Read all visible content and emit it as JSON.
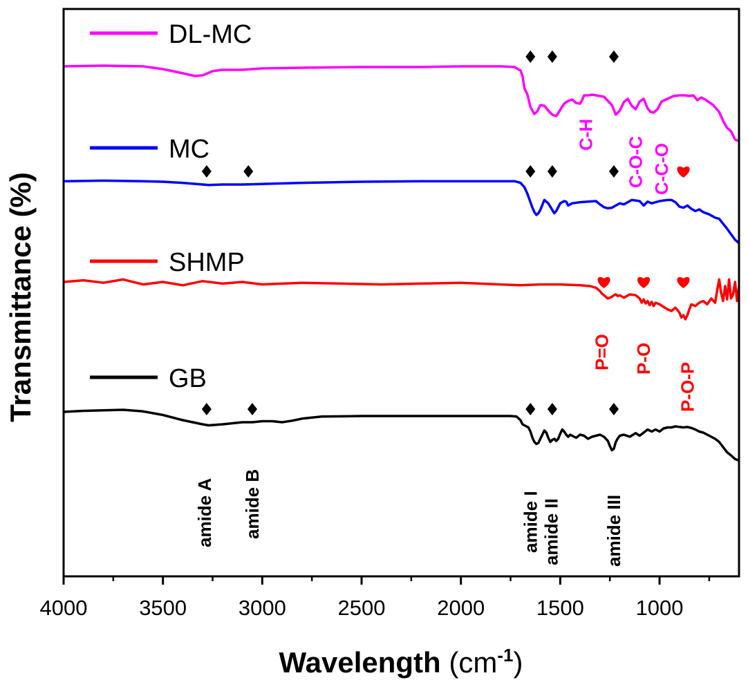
{
  "chart_data": {
    "type": "line",
    "title": "",
    "xlabel": "Wavelength",
    "xlabel_unit_base": "(cm",
    "xlabel_unit_sup": "-1",
    "xlabel_unit_close": ")",
    "ylabel": "Transmittance (%)",
    "xlim": [
      4000,
      600
    ],
    "x_reversed": true,
    "y_ticks_shown": false,
    "grid": false,
    "legend_placement": "left, beside each trace",
    "x_ticks": [
      4000,
      3500,
      3000,
      2500,
      2000,
      1500,
      1000
    ],
    "x_tick_labels": [
      "4000",
      "3500",
      "3000",
      "2500",
      "2000",
      "1500",
      "1000"
    ],
    "series": [
      {
        "name": "DL-MC",
        "color": "#ff00ff",
        "x": [
          4000,
          3800,
          3600,
          3500,
          3400,
          3340,
          3300,
          3250,
          3200,
          3100,
          3000,
          2800,
          2500,
          2200,
          2000,
          1800,
          1730,
          1700,
          1690,
          1680,
          1665,
          1650,
          1640,
          1630,
          1615,
          1600,
          1580,
          1560,
          1540,
          1520,
          1500,
          1480,
          1460,
          1440,
          1420,
          1400,
          1390,
          1380,
          1360,
          1340,
          1320,
          1300,
          1280,
          1260,
          1240,
          1220,
          1200,
          1180,
          1160,
          1140,
          1120,
          1100,
          1080,
          1060,
          1045,
          1030,
          1010,
          990,
          960,
          930,
          900,
          870,
          850,
          830,
          810,
          790,
          770,
          750,
          730,
          700,
          680,
          660,
          640,
          620,
          600
        ],
        "values": [
          94,
          95,
          94,
          90,
          84,
          80,
          81,
          87,
          89,
          89,
          91,
          92,
          93,
          93,
          94,
          94,
          93,
          88,
          80,
          62,
          53,
          35,
          30,
          25,
          29,
          38,
          37,
          30,
          24,
          22,
          31,
          40,
          44,
          46,
          41,
          40,
          45,
          52,
          52,
          53,
          52,
          51,
          50,
          44,
          38,
          24,
          30,
          42,
          47,
          37,
          32,
          43,
          47,
          33,
          28,
          27,
          32,
          43,
          47,
          51,
          52,
          52,
          51,
          52,
          45,
          49,
          46,
          42,
          38,
          28,
          15,
          5,
          0,
          -12,
          -14
        ]
      },
      {
        "name": "MC",
        "color": "#0000ff",
        "x": [
          4000,
          3800,
          3600,
          3500,
          3400,
          3300,
          3270,
          3200,
          3100,
          3000,
          2800,
          2500,
          2200,
          2000,
          1800,
          1730,
          1700,
          1690,
          1680,
          1665,
          1650,
          1640,
          1630,
          1620,
          1610,
          1600,
          1580,
          1560,
          1540,
          1530,
          1520,
          1500,
          1480,
          1470,
          1460,
          1440,
          1400,
          1360,
          1320,
          1300,
          1280,
          1260,
          1240,
          1220,
          1200,
          1180,
          1160,
          1140,
          1100,
          1080,
          1060,
          1040,
          1000,
          960,
          940,
          920,
          900,
          880,
          860,
          840,
          820,
          800,
          780,
          750,
          720,
          700,
          680,
          660,
          640,
          620,
          600
        ],
        "values": [
          96,
          97,
          96,
          95,
          93,
          90,
          89,
          90,
          90,
          91,
          93,
          95,
          96,
          96,
          96,
          96,
          93,
          89,
          85,
          73,
          58,
          48,
          40,
          35,
          38,
          44,
          62,
          56,
          44,
          38,
          42,
          56,
          60,
          59,
          52,
          56,
          58,
          59,
          60,
          54,
          49,
          47,
          48,
          52,
          56,
          54,
          58,
          62,
          60,
          52,
          59,
          56,
          60,
          62,
          62,
          58,
          50,
          48,
          52,
          46,
          42,
          45,
          40,
          36,
          30,
          28,
          19,
          10,
          0,
          -10,
          -16
        ]
      },
      {
        "name": "SHMP",
        "color": "#ff0000",
        "x": [
          4000,
          3900,
          3800,
          3700,
          3600,
          3500,
          3400,
          3300,
          3200,
          3100,
          3000,
          2800,
          2600,
          2400,
          2200,
          2000,
          1800,
          1700,
          1600,
          1500,
          1400,
          1350,
          1320,
          1300,
          1290,
          1280,
          1270,
          1260,
          1250,
          1240,
          1230,
          1220,
          1210,
          1200,
          1180,
          1150,
          1120,
          1100,
          1090,
          1080,
          1070,
          1060,
          1050,
          1040,
          1030,
          1020,
          1000,
          980,
          960,
          940,
          920,
          900,
          890,
          880,
          870,
          860,
          850,
          840,
          820,
          800,
          780,
          760,
          740,
          720,
          710,
          700,
          690,
          680,
          670,
          660,
          650,
          640,
          630,
          620,
          610,
          600
        ],
        "values": [
          15,
          17,
          14,
          18,
          12,
          15,
          11,
          16,
          13,
          15,
          12,
          14,
          13,
          12,
          13,
          14,
          12,
          11,
          12,
          12,
          11,
          10,
          8,
          4,
          1,
          -1,
          -3,
          -5,
          -4,
          -3,
          -1,
          0,
          -2,
          -1,
          -4,
          0,
          -1,
          -5,
          -10,
          -6,
          -11,
          -8,
          -13,
          -9,
          -14,
          -10,
          -12,
          -15,
          -18,
          -20,
          -16,
          -22,
          -28,
          -25,
          -30,
          -25,
          -18,
          -12,
          -14,
          -10,
          -8,
          -12,
          -5,
          -10,
          5,
          18,
          2,
          -8,
          10,
          -6,
          18,
          -5,
          0,
          15,
          -8,
          10
        ]
      },
      {
        "name": "GB",
        "color": "#000000",
        "x": [
          4000,
          3900,
          3800,
          3700,
          3600,
          3500,
          3400,
          3300,
          3270,
          3200,
          3100,
          3050,
          3000,
          2950,
          2900,
          2850,
          2800,
          2700,
          2500,
          2200,
          2000,
          1850,
          1750,
          1720,
          1700,
          1690,
          1680,
          1670,
          1660,
          1650,
          1640,
          1630,
          1620,
          1610,
          1600,
          1590,
          1580,
          1570,
          1560,
          1550,
          1540,
          1530,
          1520,
          1510,
          1500,
          1490,
          1480,
          1470,
          1460,
          1450,
          1420,
          1400,
          1380,
          1360,
          1340,
          1320,
          1300,
          1280,
          1260,
          1250,
          1240,
          1230,
          1220,
          1210,
          1200,
          1180,
          1150,
          1120,
          1100,
          1080,
          1060,
          1040,
          1020,
          1000,
          980,
          960,
          940,
          920,
          900,
          880,
          860,
          840,
          820,
          800,
          780,
          760,
          740,
          720,
          700,
          680,
          660,
          640,
          620,
          600
        ],
        "values": [
          96,
          98,
          99,
          100,
          97,
          90,
          80,
          72,
          70,
          72,
          76,
          76,
          78,
          78,
          76,
          79,
          83,
          87,
          88,
          88,
          88,
          88,
          88,
          87,
          80,
          72,
          70,
          68,
          66,
          58,
          46,
          38,
          34,
          36,
          44,
          52,
          60,
          56,
          46,
          38,
          42,
          44,
          40,
          44,
          54,
          62,
          58,
          52,
          48,
          52,
          46,
          52,
          50,
          44,
          48,
          50,
          52,
          48,
          40,
          30,
          22,
          25,
          38,
          45,
          50,
          52,
          48,
          55,
          50,
          56,
          62,
          58,
          62,
          58,
          64,
          66,
          66,
          68,
          67,
          66,
          67,
          65,
          62,
          58,
          56,
          52,
          48,
          44,
          38,
          28,
          18,
          12,
          5,
          2
        ]
      }
    ],
    "diamond_markers": [
      {
        "series": "DL-MC",
        "x": [
          1650,
          1540,
          1230
        ]
      },
      {
        "series": "MC",
        "x": [
          3280,
          3070,
          1650,
          1540,
          1230
        ]
      },
      {
        "series": "GB",
        "x": [
          3280,
          3050,
          1650,
          1540,
          1230
        ]
      }
    ],
    "heart_markers": [
      {
        "series": "MC",
        "x": [
          880
        ]
      },
      {
        "series": "SHMP",
        "x": [
          1280,
          1080,
          880
        ]
      }
    ],
    "annotations": [
      {
        "text": "C-H",
        "color": "#ff00ff",
        "x": 1370
      },
      {
        "text": "C-O-C",
        "color": "#ff00ff",
        "x": 1120
      },
      {
        "text": "C-C-O",
        "color": "#ff00ff",
        "x": 990
      },
      {
        "text": "P=O",
        "color": "#ff0000",
        "x": 1290
      },
      {
        "text": "P-O",
        "color": "#ff0000",
        "x": 1080
      },
      {
        "text": "P-O-P",
        "color": "#ff0000",
        "x": 860
      },
      {
        "text": "amide A",
        "color": "#000000",
        "x": 3290
      },
      {
        "text": "amide B",
        "color": "#000000",
        "x": 3050
      },
      {
        "text": "amide I",
        "color": "#000000",
        "x": 1650
      },
      {
        "text": "amide II",
        "color": "#000000",
        "x": 1545
      },
      {
        "text": "amide III",
        "color": "#000000",
        "x": 1230
      }
    ]
  }
}
